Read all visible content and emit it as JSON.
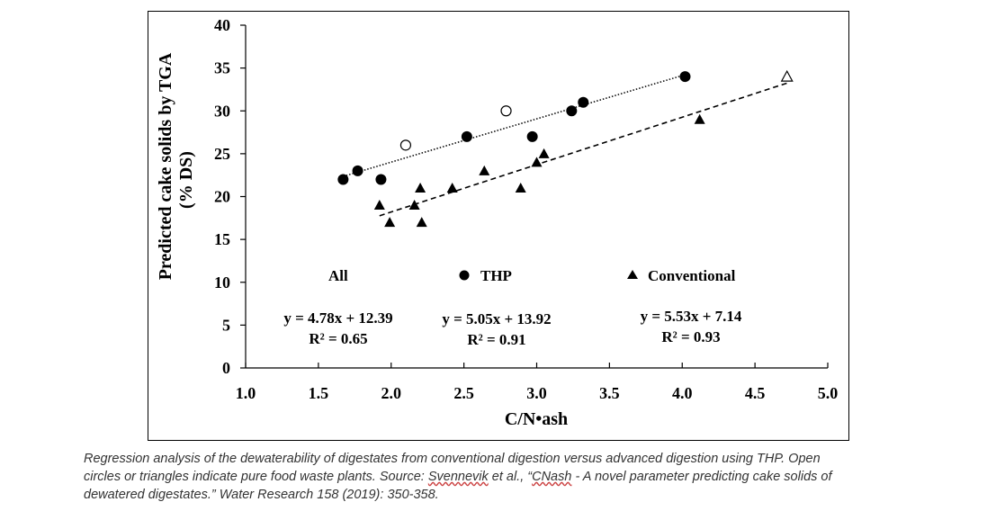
{
  "chart_data": {
    "type": "scatter",
    "xlabel": "C/N•ash",
    "ylabel": "Predicted cake solids by TGA",
    "ylabel2": "(% DS)",
    "xlim": [
      1.0,
      5.0
    ],
    "ylim": [
      0,
      40
    ],
    "xticks": [
      "1.0",
      "1.5",
      "2.0",
      "2.5",
      "3.0",
      "3.5",
      "4.0",
      "4.5",
      "5.0"
    ],
    "yticks": [
      "0",
      "5",
      "10",
      "15",
      "20",
      "25",
      "30",
      "35",
      "40"
    ],
    "series": [
      {
        "name": "THP",
        "marker": "filled-circle",
        "points": [
          [
            1.67,
            22
          ],
          [
            1.77,
            23
          ],
          [
            1.93,
            22
          ],
          [
            2.52,
            27
          ],
          [
            2.97,
            27
          ],
          [
            3.24,
            30
          ],
          [
            3.32,
            31
          ],
          [
            4.02,
            34
          ]
        ]
      },
      {
        "name": "THP food waste",
        "marker": "open-circle",
        "points": [
          [
            2.1,
            26
          ],
          [
            2.79,
            30
          ]
        ]
      },
      {
        "name": "Conventional",
        "marker": "filled-triangle",
        "points": [
          [
            1.92,
            19
          ],
          [
            1.99,
            17
          ],
          [
            2.16,
            19
          ],
          [
            2.2,
            21
          ],
          [
            2.21,
            17
          ],
          [
            2.42,
            21
          ],
          [
            2.64,
            23
          ],
          [
            2.89,
            21
          ],
          [
            3.0,
            24
          ],
          [
            3.05,
            25
          ],
          [
            4.12,
            29
          ]
        ]
      },
      {
        "name": "Conventional food waste",
        "marker": "open-triangle",
        "points": [
          [
            4.72,
            34
          ]
        ]
      }
    ],
    "fits": [
      {
        "series": "THP",
        "style": "dotted",
        "slope": 5.05,
        "intercept": 13.92,
        "x_range": [
          1.67,
          4.02
        ]
      },
      {
        "series": "Conventional",
        "style": "dashed",
        "slope": 5.53,
        "intercept": 7.14,
        "x_range": [
          1.92,
          4.72
        ]
      }
    ],
    "legend": {
      "all": "All",
      "thp": "THP",
      "conventional": "Conventional"
    },
    "equations": {
      "all_eq": "y = 4.78x + 12.39",
      "all_r2": "R² = 0.65",
      "thp_eq": "y = 5.05x + 13.92",
      "thp_r2": "R² = 0.91",
      "conv_eq": "y = 5.53x + 7.14",
      "conv_r2": "R² = 0.93"
    }
  },
  "caption": {
    "line1": "Regression analysis of the dewaterability of digestates from conventional digestion versus advanced digestion using THP. Open",
    "line2_pre": "circles or triangles indicate pure food waste plants. Source: ",
    "line2_author": "Svennevik",
    "line2_mid": " et al., “",
    "line2_cnash": "CNash",
    "line2_post": " - A novel parameter predicting cake solids of",
    "line3": "dewatered digestates.” Water Research 158 (2019): 350-358."
  }
}
